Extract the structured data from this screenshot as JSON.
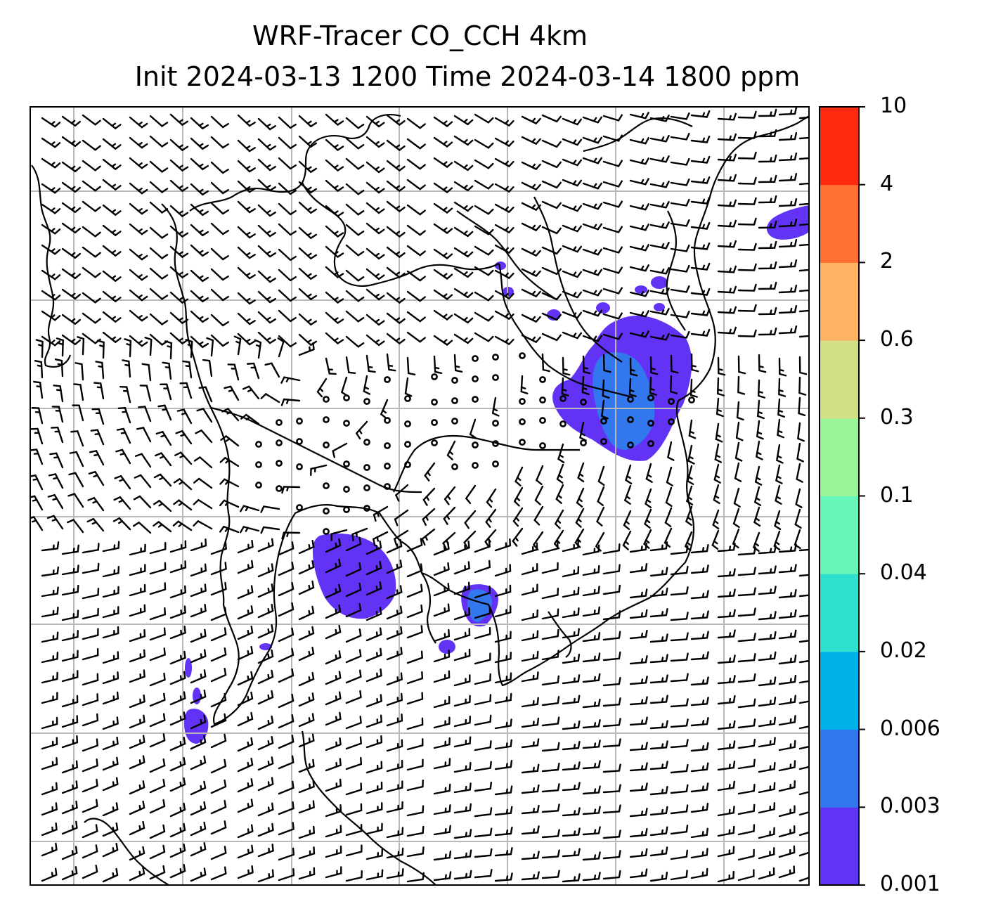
{
  "title": {
    "line1": "WRF-Tracer CO_CCH 4km",
    "line2": "Init 2024-03-13 1200 Time 2024-03-14 1800 ppm"
  },
  "colorbar": {
    "levels": [
      "0.001",
      "0.003",
      "0.006",
      "0.02",
      "0.04",
      "0.1",
      "0.3",
      "0.6",
      "2",
      "4",
      "10"
    ],
    "colors": [
      "#6233f5",
      "#3277ee",
      "#00b2e9",
      "#2fdfd0",
      "#66f7b8",
      "#9af49a",
      "#d2df86",
      "#fdb264",
      "#ff7135",
      "#ff2a10"
    ]
  },
  "map": {
    "gridline_color": "#b8b8b8",
    "coast_color": "#000000",
    "wind_barb_color": "#000000"
  }
}
